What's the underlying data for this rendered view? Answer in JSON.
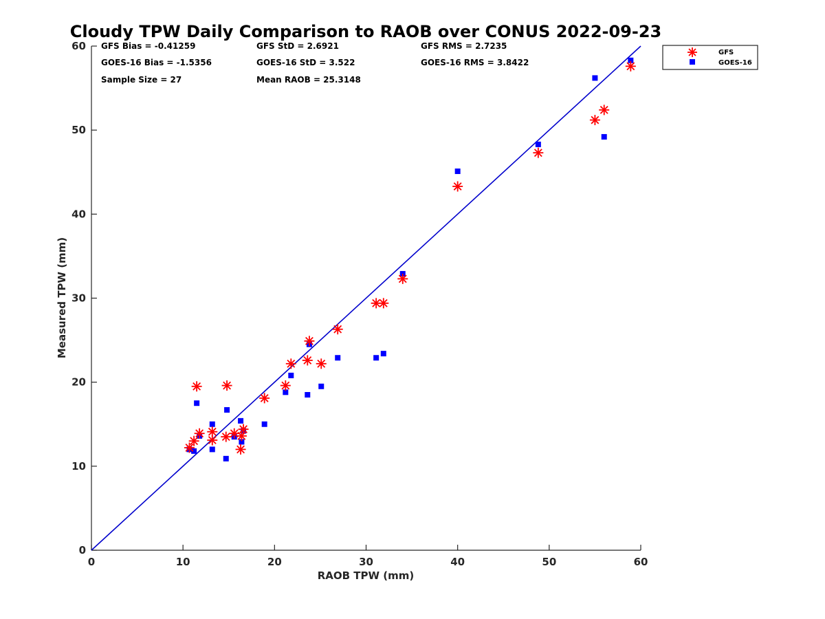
{
  "chart_data": {
    "type": "scatter",
    "title": "Cloudy TPW Daily Comparison to RAOB over CONUS 2022-09-23",
    "xlabel": "RAOB TPW (mm)",
    "ylabel": "Measured TPW (mm)",
    "xlim": [
      0,
      60
    ],
    "ylim": [
      0,
      60
    ],
    "x_ticks": [
      "0",
      "10",
      "20",
      "30",
      "40",
      "50",
      "60"
    ],
    "y_ticks": [
      "0",
      "10",
      "20",
      "30",
      "40",
      "50",
      "60"
    ],
    "grid": false,
    "legend_position": "outside-top-right",
    "reference_line": {
      "x": [
        0,
        60
      ],
      "y": [
        0,
        60
      ],
      "color": "#0000CC"
    },
    "stats": {
      "gfs_bias": "GFS Bias = -0.41259",
      "goes_bias": "GOES-16 Bias = -1.5356",
      "sample_size": "Sample Size = 27",
      "gfs_std": "GFS StD = 2.6921",
      "goes_std": "GOES-16 StD = 3.522",
      "mean_raob": "Mean RAOB = 25.3148",
      "gfs_rms": "GFS RMS = 2.7235",
      "goes_rms": "GOES-16 RMS = 3.8422"
    },
    "series": [
      {
        "name": "GFS",
        "marker": "asterisk",
        "color": "#FF0000",
        "points": [
          [
            10.7,
            12.2
          ],
          [
            11.2,
            13.0
          ],
          [
            11.5,
            19.5
          ],
          [
            11.8,
            13.9
          ],
          [
            13.2,
            14.1
          ],
          [
            13.2,
            13.1
          ],
          [
            14.7,
            13.5
          ],
          [
            14.8,
            19.6
          ],
          [
            15.6,
            13.9
          ],
          [
            16.3,
            12.0
          ],
          [
            16.4,
            13.6
          ],
          [
            16.6,
            14.4
          ],
          [
            18.9,
            18.1
          ],
          [
            21.2,
            19.6
          ],
          [
            21.8,
            22.2
          ],
          [
            23.6,
            22.6
          ],
          [
            23.8,
            24.9
          ],
          [
            25.1,
            22.2
          ],
          [
            26.9,
            26.3
          ],
          [
            31.1,
            29.4
          ],
          [
            31.9,
            29.4
          ],
          [
            34.0,
            32.3
          ],
          [
            40.0,
            43.3
          ],
          [
            48.8,
            47.3
          ],
          [
            55.0,
            51.2
          ],
          [
            56.0,
            52.4
          ],
          [
            58.9,
            57.6
          ]
        ]
      },
      {
        "name": "GOES-16",
        "marker": "square",
        "color": "#0000FF",
        "points": [
          [
            10.7,
            12.0
          ],
          [
            11.2,
            11.8
          ],
          [
            11.5,
            17.5
          ],
          [
            11.8,
            13.6
          ],
          [
            13.2,
            15.0
          ],
          [
            13.2,
            12.0
          ],
          [
            14.7,
            10.9
          ],
          [
            14.8,
            16.7
          ],
          [
            15.6,
            13.5
          ],
          [
            16.3,
            15.4
          ],
          [
            16.4,
            12.9
          ],
          [
            16.6,
            14.2
          ],
          [
            18.9,
            15.0
          ],
          [
            21.2,
            18.8
          ],
          [
            21.8,
            20.8
          ],
          [
            23.6,
            18.5
          ],
          [
            23.8,
            24.5
          ],
          [
            25.1,
            19.5
          ],
          [
            26.9,
            22.9
          ],
          [
            31.1,
            22.9
          ],
          [
            31.9,
            23.4
          ],
          [
            34.0,
            32.9
          ],
          [
            40.0,
            45.1
          ],
          [
            48.8,
            48.3
          ],
          [
            55.0,
            56.2
          ],
          [
            56.0,
            49.2
          ],
          [
            58.9,
            58.3
          ]
        ]
      }
    ]
  }
}
